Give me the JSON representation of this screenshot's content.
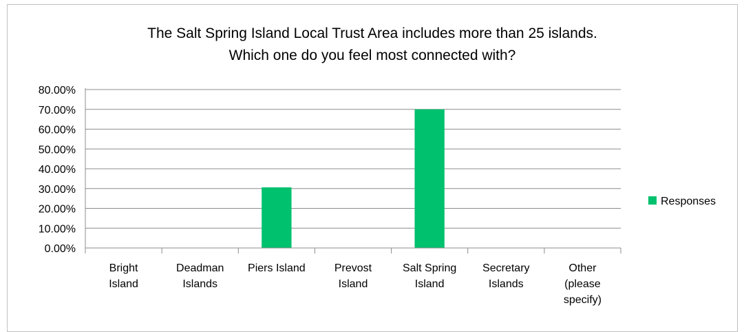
{
  "chart_data": {
    "type": "bar",
    "title_lines": [
      "The Salt Spring Island Local Trust Area includes more than 25 islands.",
      "Which one do you feel most connected with?"
    ],
    "categories": [
      [
        "Bright",
        "Island"
      ],
      [
        "Deadman",
        "Islands"
      ],
      [
        "Piers Island"
      ],
      [
        "Prevost",
        "Island"
      ],
      [
        "Salt Spring",
        "Island"
      ],
      [
        "Secretary",
        "Islands"
      ],
      [
        "Other",
        "(please",
        "specify)"
      ]
    ],
    "series": [
      {
        "name": "Responses",
        "color": "#00c16e",
        "values": [
          0,
          0,
          30.6,
          0,
          70.0,
          0,
          0
        ]
      }
    ],
    "yticks": [
      "0.00%",
      "10.00%",
      "20.00%",
      "30.00%",
      "40.00%",
      "50.00%",
      "60.00%",
      "70.00%",
      "80.00%"
    ],
    "ylim": [
      0,
      80
    ],
    "grid": true,
    "legend_position": "right"
  }
}
